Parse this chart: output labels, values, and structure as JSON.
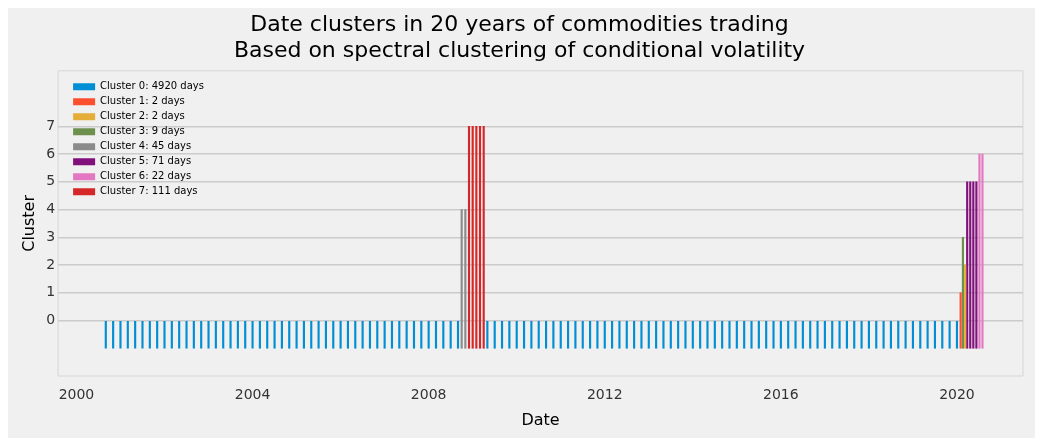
{
  "chart_data": {
    "type": "bar",
    "title": "Date clusters in 20 years of commodities trading",
    "subtitle": "Based on spectral clustering of conditional volatility",
    "xlabel": "Date",
    "ylabel": "Cluster",
    "xlim": [
      "1999-08",
      "2021-07"
    ],
    "xticks": [
      "2000",
      "2004",
      "2008",
      "2012",
      "2016",
      "2020"
    ],
    "ylim": [
      -2,
      9
    ],
    "yticks": [
      0,
      1,
      2,
      3,
      4,
      5,
      6,
      7
    ],
    "grid": "y",
    "legend": "top left",
    "series": [
      {
        "name": "Cluster 0: 4920 days",
        "color": "#008fd5",
        "x": [
          "2000-09",
          "2000-11",
          "2001-01",
          "2001-03",
          "2001-05",
          "2001-07",
          "2001-09",
          "2001-11",
          "2002-01",
          "2002-03",
          "2002-05",
          "2002-07",
          "2002-09",
          "2002-11",
          "2003-01",
          "2003-03",
          "2003-05",
          "2003-07",
          "2003-09",
          "2003-11",
          "2004-01",
          "2004-03",
          "2004-05",
          "2004-07",
          "2004-09",
          "2004-11",
          "2005-01",
          "2005-03",
          "2005-05",
          "2005-07",
          "2005-09",
          "2005-11",
          "2006-01",
          "2006-03",
          "2006-05",
          "2006-07",
          "2006-09",
          "2006-11",
          "2007-01",
          "2007-03",
          "2007-05",
          "2007-07",
          "2007-09",
          "2007-11",
          "2008-01",
          "2008-03",
          "2008-05",
          "2008-07",
          "2008-09",
          "2009-05",
          "2009-07",
          "2009-09",
          "2009-11",
          "2010-01",
          "2010-03",
          "2010-05",
          "2010-07",
          "2010-09",
          "2010-11",
          "2011-01",
          "2011-03",
          "2011-05",
          "2011-07",
          "2011-09",
          "2011-11",
          "2012-01",
          "2012-03",
          "2012-05",
          "2012-07",
          "2012-09",
          "2012-11",
          "2013-01",
          "2013-03",
          "2013-05",
          "2013-07",
          "2013-09",
          "2013-11",
          "2014-01",
          "2014-03",
          "2014-05",
          "2014-07",
          "2014-09",
          "2014-11",
          "2015-01",
          "2015-03",
          "2015-05",
          "2015-07",
          "2015-09",
          "2015-11",
          "2016-01",
          "2016-03",
          "2016-05",
          "2016-07",
          "2016-09",
          "2016-11",
          "2017-01",
          "2017-03",
          "2017-05",
          "2017-07",
          "2017-09",
          "2017-11",
          "2018-01",
          "2018-03",
          "2018-05",
          "2018-07",
          "2018-09",
          "2018-11",
          "2019-01",
          "2019-03",
          "2019-05",
          "2019-07",
          "2019-09",
          "2019-11",
          "2020-01"
        ],
        "values": [
          1,
          1,
          1,
          1,
          1,
          1,
          1,
          1,
          1,
          1,
          1,
          1,
          1,
          1,
          1,
          1,
          1,
          1,
          1,
          1,
          1,
          1,
          1,
          1,
          1,
          1,
          1,
          1,
          1,
          1,
          1,
          1,
          1,
          1,
          1,
          1,
          1,
          1,
          1,
          1,
          1,
          1,
          1,
          1,
          1,
          1,
          1,
          1,
          1,
          1,
          1,
          1,
          1,
          1,
          1,
          1,
          1,
          1,
          1,
          1,
          1,
          1,
          1,
          1,
          1,
          1,
          1,
          1,
          1,
          1,
          1,
          1,
          1,
          1,
          1,
          1,
          1,
          1,
          1,
          1,
          1,
          1,
          1,
          1,
          1,
          1,
          1,
          1,
          1,
          1,
          1,
          1,
          1,
          1,
          1,
          1,
          1,
          1,
          1,
          1,
          1,
          1,
          1,
          1,
          1,
          1,
          1,
          1,
          1,
          1,
          1,
          1,
          1,
          1
        ],
        "base": [
          -1,
          -1,
          -1,
          -1,
          -1,
          -1,
          -1,
          -1,
          -1,
          -1,
          -1,
          -1,
          -1,
          -1,
          -1,
          -1,
          -1,
          -1,
          -1,
          -1,
          -1,
          -1,
          -1,
          -1,
          -1,
          -1,
          -1,
          -1,
          -1,
          -1,
          -1,
          -1,
          -1,
          -1,
          -1,
          -1,
          -1,
          -1,
          -1,
          -1,
          -1,
          -1,
          -1,
          -1,
          -1,
          -1,
          -1,
          -1,
          -1,
          -1,
          -1,
          -1,
          -1,
          -1,
          -1,
          -1,
          -1,
          -1,
          -1,
          -1,
          -1,
          -1,
          -1,
          -1,
          -1,
          -1,
          -1,
          -1,
          -1,
          -1,
          -1,
          -1,
          -1,
          -1,
          -1,
          -1,
          -1,
          -1,
          -1,
          -1,
          -1,
          -1,
          -1,
          -1,
          -1,
          -1,
          -1,
          -1,
          -1,
          -1,
          -1,
          -1,
          -1,
          -1,
          -1,
          -1,
          -1,
          -1,
          -1,
          -1,
          -1,
          -1,
          -1,
          -1,
          -1,
          -1,
          -1,
          -1,
          -1,
          -1,
          -1,
          -1,
          -1,
          -1
        ]
      },
      {
        "name": "Cluster 1: 2 days",
        "color": "#fc4f30",
        "x": [
          "2020-02-01"
        ],
        "values": [
          2
        ],
        "base": [
          -1
        ]
      },
      {
        "name": "Cluster 2: 2 days",
        "color": "#e5ae38",
        "x": [
          "2020-03-08"
        ],
        "values": [
          3
        ],
        "base": [
          -1
        ]
      },
      {
        "name": "Cluster 3: 9 days",
        "color": "#6d904f",
        "x": [
          "2020-02-20"
        ],
        "values": [
          4
        ],
        "base": [
          -1
        ]
      },
      {
        "name": "Cluster 4: 45 days",
        "color": "#8b8b8b",
        "x": [
          "2008-10",
          "2008-11"
        ],
        "values": [
          5,
          5
        ],
        "base": [
          -1,
          -1
        ]
      },
      {
        "name": "Cluster 5: 71 days",
        "color": "#810f7c",
        "x": [
          "2020-03-25",
          "2020-04-20",
          "2020-05-15",
          "2020-06-10"
        ],
        "values": [
          6,
          6,
          6,
          6
        ],
        "base": [
          -1,
          -1,
          -1,
          -1
        ]
      },
      {
        "name": "Cluster 6: 22 days",
        "color": "#e377c2",
        "x": [
          "2020-07-05",
          "2020-07-30"
        ],
        "values": [
          7,
          7
        ],
        "base": [
          -1,
          -1
        ]
      },
      {
        "name": "Cluster 7: 111 days",
        "color": "#d62728",
        "x": [
          "2008-12",
          "2009-01",
          "2009-02",
          "2009-03",
          "2009-04"
        ],
        "values": [
          8,
          8,
          8,
          8,
          8
        ],
        "base": [
          -1,
          -1,
          -1,
          -1,
          -1
        ]
      }
    ]
  }
}
